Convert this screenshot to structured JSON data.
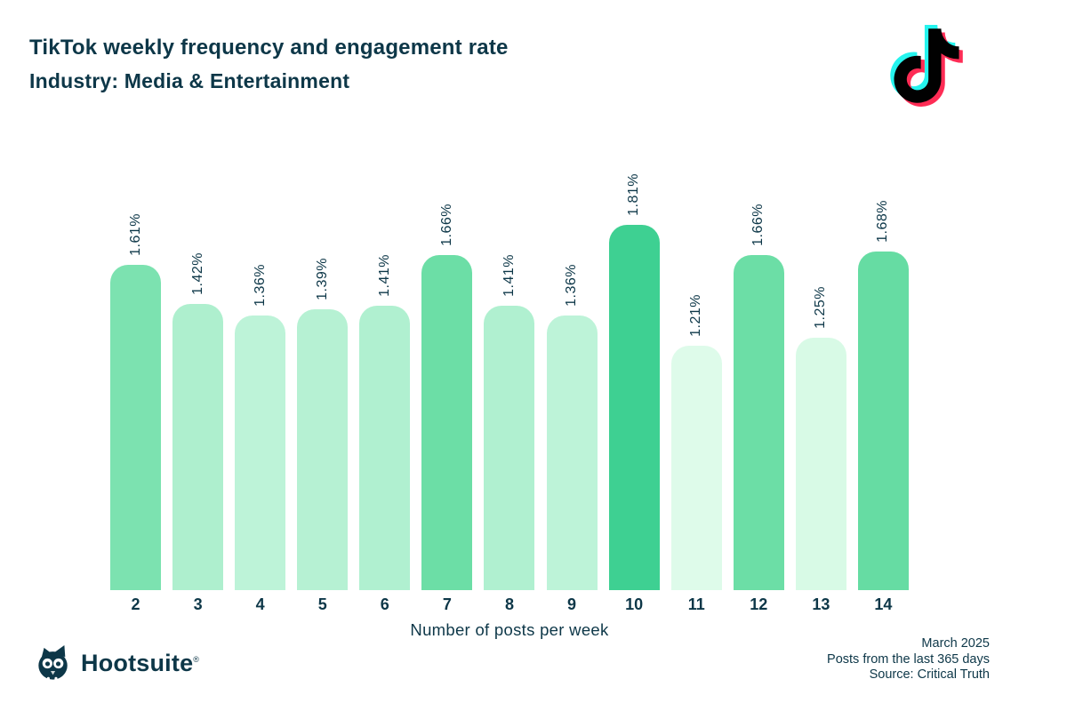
{
  "header": {
    "title_line1": "TikTok weekly frequency and engagement rate",
    "title_line2": "Industry: Media & Entertainment"
  },
  "colors": {
    "text_dark": "#0d3748",
    "tiktok_cyan": "#25f4ee",
    "tiktok_red": "#fe2c55",
    "tiktok_black": "#010101",
    "background": "#ffffff"
  },
  "chart_data": {
    "type": "bar",
    "title": "TikTok weekly frequency and engagement rate",
    "subtitle": "Industry: Media & Entertainment",
    "categories": [
      "2",
      "3",
      "4",
      "5",
      "6",
      "7",
      "8",
      "9",
      "10",
      "11",
      "12",
      "13",
      "14"
    ],
    "values": [
      1.61,
      1.42,
      1.36,
      1.39,
      1.41,
      1.66,
      1.41,
      1.36,
      1.81,
      1.21,
      1.66,
      1.25,
      1.68
    ],
    "labels": [
      "1.61%",
      "1.42%",
      "1.36%",
      "1.39%",
      "1.41%",
      "1.66%",
      "1.41%",
      "1.36%",
      "1.81%",
      "1.21%",
      "1.66%",
      "1.25%",
      "1.68%"
    ],
    "bar_colors": [
      "#7ce2b0",
      "#aeefce",
      "#bdf3d8",
      "#b6f1d3",
      "#b0f0d0",
      "#6cdea6",
      "#b0f0d0",
      "#bdf3d8",
      "#3ed092",
      "#defbea",
      "#6cdea6",
      "#d8fae6",
      "#66dca3"
    ],
    "xlabel": "Number of posts per week",
    "ylabel": "",
    "ylim": [
      0,
      1.81
    ],
    "grid": false,
    "legend": null,
    "value_label_rotation": -90
  },
  "footer": {
    "brand": "Hootsuite",
    "registered": "®",
    "date": "March 2025",
    "note": "Posts from the last 365 days",
    "source": "Source: Critical Truth"
  }
}
